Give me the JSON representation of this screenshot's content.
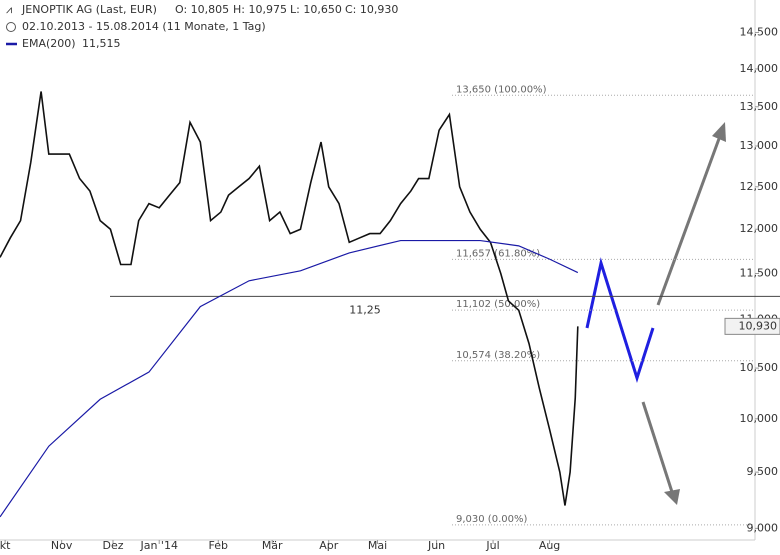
{
  "chart_data": {
    "type": "line",
    "title": "JENOPTIK AG (Last, EUR)",
    "ohlc": [
      "O: 10,805",
      "H: 10,975",
      "L: 10,650",
      "C: 10,930"
    ],
    "subtitle": "02.10.2013 - 15.08.2014 (11 Monate, 1 Tag)",
    "log_scale": true,
    "xlim": [
      0,
      294
    ],
    "ylim": [
      8.9,
      14.96
    ],
    "xticks": [
      {
        "value": 2,
        "label": "kt"
      },
      {
        "value": 24,
        "label": "Nov"
      },
      {
        "value": 44,
        "label": "Dez"
      },
      {
        "value": 62,
        "label": "Jan '14"
      },
      {
        "value": 85,
        "label": "Feb"
      },
      {
        "value": 106,
        "label": "Mär"
      },
      {
        "value": 128,
        "label": "Apr"
      },
      {
        "value": 147,
        "label": "Mai"
      },
      {
        "value": 170,
        "label": "Jun"
      },
      {
        "value": 192,
        "label": "Jul"
      },
      {
        "value": 214,
        "label": "Aug"
      }
    ],
    "yticks": [
      {
        "value": 9.0,
        "label": "9,000"
      },
      {
        "value": 9.5,
        "label": "9,500"
      },
      {
        "value": 10.0,
        "label": "10,000"
      },
      {
        "value": 10.5,
        "label": "10,500"
      },
      {
        "value": 11.0,
        "label": "11,000"
      },
      {
        "value": 11.5,
        "label": "11,500"
      },
      {
        "value": 12.0,
        "label": "12,000"
      },
      {
        "value": 12.5,
        "label": "12,500"
      },
      {
        "value": 13.0,
        "label": "13,000"
      },
      {
        "value": 13.5,
        "label": "13,500"
      },
      {
        "value": 14.0,
        "label": "14,000"
      },
      {
        "value": 14.5,
        "label": "14,500"
      }
    ],
    "series": [
      {
        "color": "#111111",
        "last_value": 10.93,
        "last_label": "10,930",
        "x": [
          0,
          4,
          8,
          12,
          16,
          19,
          23,
          27,
          31,
          35,
          39,
          43,
          47,
          51,
          54,
          58,
          62,
          66,
          70,
          74,
          78,
          82,
          86,
          89,
          93,
          97,
          101,
          105,
          109,
          113,
          117,
          121,
          125,
          128,
          132,
          136,
          140,
          144,
          148,
          152,
          156,
          160,
          163,
          167,
          171,
          175,
          179,
          183,
          187,
          191,
          195,
          198,
          202,
          206,
          210,
          214,
          218,
          220,
          222,
          224,
          225
        ],
        "values": [
          11.68,
          11.9,
          12.1,
          12.8,
          13.7,
          12.9,
          12.9,
          12.9,
          12.6,
          12.45,
          12.1,
          12.0,
          11.6,
          11.6,
          12.1,
          12.3,
          12.25,
          12.4,
          12.55,
          13.3,
          13.05,
          12.1,
          12.2,
          12.4,
          12.5,
          12.6,
          12.75,
          12.1,
          12.2,
          11.95,
          12.0,
          12.55,
          13.05,
          12.5,
          12.3,
          11.85,
          11.9,
          11.95,
          11.95,
          12.1,
          12.3,
          12.45,
          12.6,
          12.6,
          13.2,
          13.4,
          12.5,
          12.2,
          12.0,
          11.85,
          11.5,
          11.2,
          11.1,
          10.75,
          10.3,
          9.9,
          9.5,
          9.2,
          9.5,
          10.2,
          10.93
        ]
      },
      {
        "name": "EMA(200)",
        "color": "#1a1aa6",
        "last_value": 11.515,
        "last_label": "11,515",
        "x": [
          0,
          19,
          39,
          58,
          78,
          97,
          117,
          136,
          156,
          175,
          187,
          202,
          214,
          225
        ],
        "values": [
          9.1,
          9.74,
          10.19,
          10.46,
          11.14,
          11.42,
          11.53,
          11.73,
          11.87,
          11.87,
          11.87,
          11.81,
          11.66,
          11.51
        ]
      }
    ],
    "support": {
      "value": 11.25,
      "label": "11,25"
    },
    "fib_levels": [
      {
        "value": 13.65,
        "label": "13,650 (100.00%)"
      },
      {
        "value": 11.657,
        "label": "11,657 (61.80%)"
      },
      {
        "value": 11.102,
        "label": "11,102 (50.00%)"
      },
      {
        "value": 10.574,
        "label": "10,574 (38.20%)"
      },
      {
        "value": 9.03,
        "label": "9,030 (0.00%)"
      }
    ]
  }
}
